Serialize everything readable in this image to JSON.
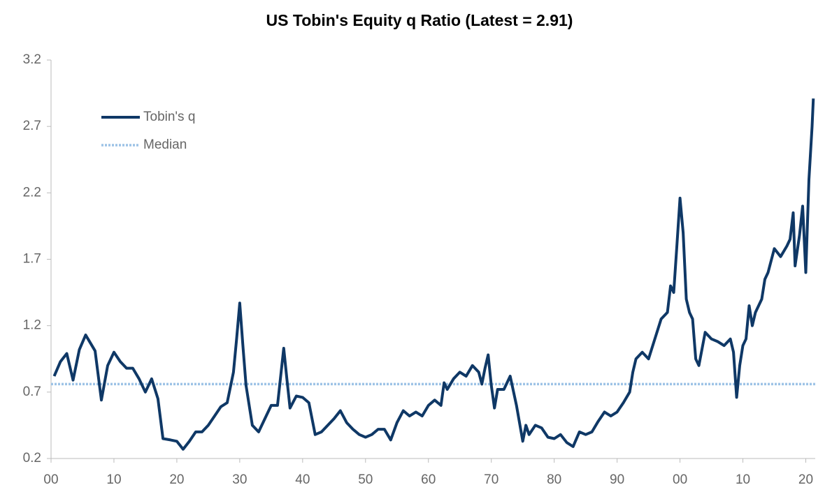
{
  "chart_data": {
    "type": "line",
    "title": "US Tobin's Equity q Ratio (Latest = 2.91)",
    "x": [
      0.5,
      1.5,
      2.5,
      3.5,
      4.5,
      5.5,
      6.5,
      7,
      8,
      9,
      10,
      11,
      12,
      13,
      14,
      15,
      16,
      17,
      17.8,
      19,
      20,
      21,
      22,
      23,
      24,
      25,
      26,
      27,
      28,
      29,
      29.5,
      30,
      30.5,
      31,
      32,
      33,
      34,
      35,
      36,
      37,
      37.5,
      38,
      39,
      40,
      41,
      42,
      43,
      44,
      45,
      46,
      47,
      48,
      49,
      50,
      51,
      52,
      53,
      54,
      55,
      56,
      57,
      58,
      59,
      60,
      61,
      62,
      62.5,
      63,
      64,
      65,
      66,
      67,
      68,
      68.5,
      69,
      69.5,
      70,
      70.5,
      71,
      72,
      73,
      74,
      75,
      75.5,
      76,
      77,
      78,
      79,
      80,
      81,
      82,
      83,
      84,
      85,
      86,
      87,
      88,
      89,
      90,
      91,
      92,
      92.5,
      93,
      94,
      95,
      96,
      97,
      98,
      98.5,
      99,
      99.5,
      100,
      100.5,
      101,
      101.5,
      102,
      102.5,
      103,
      104,
      105,
      106,
      107,
      108,
      108.5,
      109,
      109.5,
      110,
      110.5,
      111,
      111.5,
      112,
      113,
      113.5,
      114,
      115,
      116,
      117,
      117.5,
      118,
      118.3,
      119,
      119.5,
      120,
      120.5,
      121,
      121.2
    ],
    "series": [
      {
        "name": "Tobin's q",
        "color": "#0f3866",
        "values": [
          0.82,
          0.93,
          0.99,
          0.79,
          1.02,
          1.13,
          1.05,
          1.01,
          0.64,
          0.9,
          1.0,
          0.93,
          0.88,
          0.88,
          0.8,
          0.7,
          0.8,
          0.65,
          0.35,
          0.34,
          0.33,
          0.27,
          0.33,
          0.4,
          0.4,
          0.45,
          0.52,
          0.59,
          0.62,
          0.85,
          1.1,
          1.37,
          1.05,
          0.75,
          0.45,
          0.4,
          0.5,
          0.6,
          0.6,
          1.03,
          0.8,
          0.58,
          0.67,
          0.66,
          0.62,
          0.38,
          0.4,
          0.45,
          0.5,
          0.56,
          0.47,
          0.42,
          0.38,
          0.36,
          0.38,
          0.42,
          0.42,
          0.34,
          0.47,
          0.56,
          0.52,
          0.55,
          0.52,
          0.6,
          0.64,
          0.6,
          0.77,
          0.72,
          0.8,
          0.85,
          0.82,
          0.9,
          0.85,
          0.76,
          0.88,
          0.98,
          0.75,
          0.58,
          0.72,
          0.72,
          0.82,
          0.6,
          0.33,
          0.45,
          0.38,
          0.45,
          0.43,
          0.36,
          0.35,
          0.38,
          0.32,
          0.29,
          0.4,
          0.38,
          0.4,
          0.48,
          0.55,
          0.52,
          0.55,
          0.62,
          0.7,
          0.85,
          0.95,
          1.0,
          0.95,
          1.1,
          1.25,
          1.3,
          1.5,
          1.45,
          1.8,
          2.16,
          1.9,
          1.4,
          1.3,
          1.25,
          0.95,
          0.9,
          1.15,
          1.1,
          1.08,
          1.05,
          1.1,
          1.0,
          0.66,
          0.9,
          1.05,
          1.1,
          1.35,
          1.2,
          1.3,
          1.4,
          1.55,
          1.6,
          1.78,
          1.72,
          1.8,
          1.85,
          2.05,
          1.65,
          1.88,
          2.1,
          1.6,
          2.3,
          2.7,
          2.91
        ]
      }
    ],
    "reference_lines": [
      {
        "name": "Median",
        "color": "#9dc3e6",
        "value": 0.76,
        "style": "dotted"
      }
    ],
    "xlim": [
      0,
      121.5
    ],
    "xticks": [
      {
        "value": 0,
        "label": "00"
      },
      10,
      20,
      30,
      40,
      50,
      60,
      70,
      80,
      90,
      {
        "value": 100,
        "label": "00"
      },
      {
        "value": 110,
        "label": "10"
      },
      {
        "value": 120,
        "label": "20"
      }
    ],
    "ylim": [
      0.2,
      3.2
    ],
    "yticks": [
      0.2,
      0.7,
      1.2,
      1.7,
      2.2,
      2.7,
      3.2
    ],
    "grid": false,
    "legend": "upper left"
  }
}
